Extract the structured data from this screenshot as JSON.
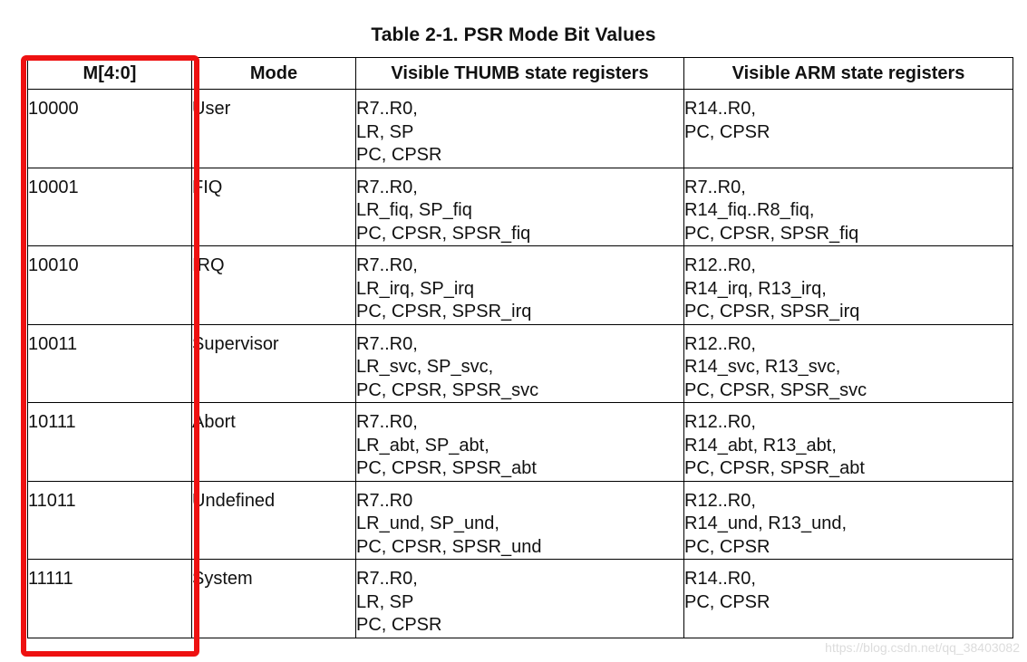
{
  "title": "Table 2-1. PSR Mode Bit Values",
  "headers": [
    "M[4:0]",
    "Mode",
    "Visible THUMB state registers",
    "Visible ARM state registers"
  ],
  "rows": [
    {
      "m": "10000",
      "mode": "User",
      "thumb": [
        "R7..R0,",
        "LR, SP",
        "PC, CPSR"
      ],
      "arm": [
        "R14..R0,",
        "PC, CPSR",
        ""
      ]
    },
    {
      "m": "10001",
      "mode": "FIQ",
      "thumb": [
        "R7..R0,",
        "LR_fiq, SP_fiq",
        "PC, CPSR, SPSR_fiq"
      ],
      "arm": [
        "R7..R0,",
        "R14_fiq..R8_fiq,",
        "PC, CPSR, SPSR_fiq"
      ]
    },
    {
      "m": "10010",
      "mode": "IRQ",
      "thumb": [
        "R7..R0,",
        "LR_irq, SP_irq",
        "PC, CPSR, SPSR_irq"
      ],
      "arm": [
        "R12..R0,",
        "R14_irq, R13_irq,",
        "PC, CPSR, SPSR_irq"
      ]
    },
    {
      "m": "10011",
      "mode": "Supervisor",
      "thumb": [
        "R7..R0,",
        "LR_svc, SP_svc,",
        "PC, CPSR, SPSR_svc"
      ],
      "arm": [
        "R12..R0,",
        "R14_svc, R13_svc,",
        "PC, CPSR, SPSR_svc"
      ]
    },
    {
      "m": "10111",
      "mode": "Abort",
      "thumb": [
        "R7..R0,",
        "LR_abt, SP_abt,",
        "PC, CPSR, SPSR_abt"
      ],
      "arm": [
        "R12..R0,",
        "R14_abt, R13_abt,",
        "PC, CPSR, SPSR_abt"
      ]
    },
    {
      "m": "11011",
      "mode": "Undefined",
      "thumb": [
        "R7..R0",
        "LR_und, SP_und,",
        "PC, CPSR, SPSR_und"
      ],
      "arm": [
        "R12..R0,",
        "R14_und, R13_und,",
        "PC, CPSR"
      ]
    },
    {
      "m": "11111",
      "mode": "System",
      "thumb": [
        "R7..R0,",
        "LR, SP",
        "PC, CPSR"
      ],
      "arm": [
        "R14..R0,",
        "PC, CPSR",
        ""
      ]
    }
  ],
  "highlight_color": "#ee1111",
  "watermark": "https://blog.csdn.net/qq_38403082"
}
